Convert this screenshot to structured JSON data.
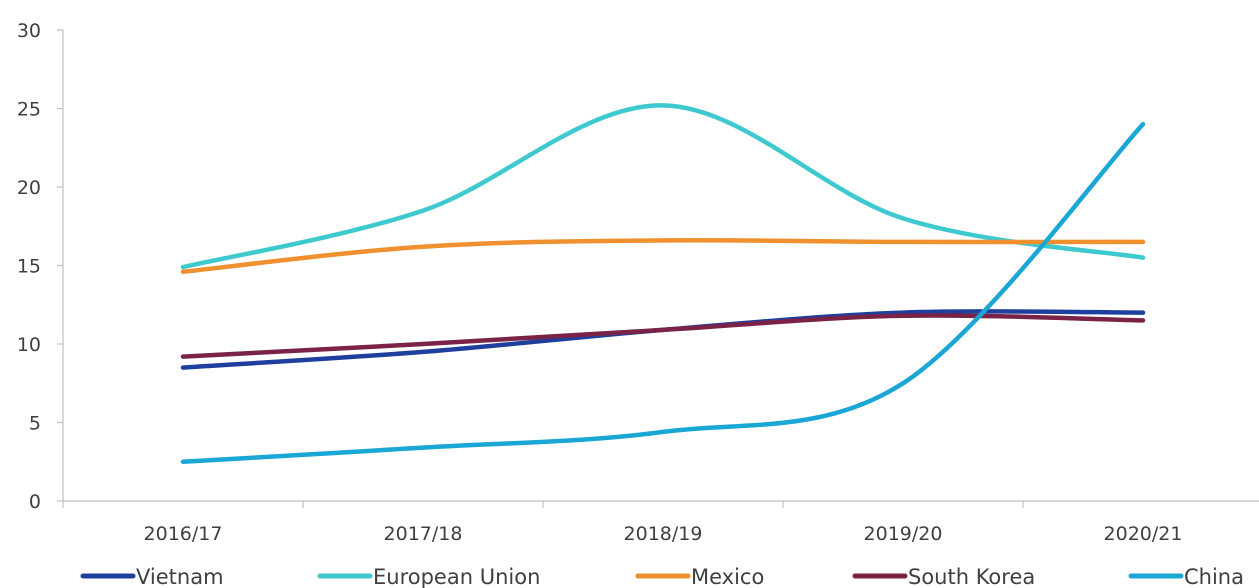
{
  "chart_data": {
    "type": "line",
    "title": "",
    "xlabel": "",
    "ylabel": "",
    "categories": [
      "2016/17",
      "2017/18",
      "2018/19",
      "2019/20",
      "2020/21"
    ],
    "ylim": [
      0,
      30
    ],
    "yticks": [
      0,
      5,
      10,
      15,
      20,
      25,
      30
    ],
    "grid": false,
    "smooth": true,
    "legend_position": "bottom",
    "series": [
      {
        "name": "Vietnam",
        "color": "#1f3f9e",
        "values": [
          8.5,
          9.5,
          10.9,
          12.0,
          12.0
        ]
      },
      {
        "name": "European Union",
        "color": "#3ec9cf",
        "values": [
          14.9,
          18.5,
          25.2,
          18.0,
          15.5
        ]
      },
      {
        "name": "Mexico",
        "color": "#f0902e",
        "values": [
          14.6,
          16.2,
          16.6,
          16.5,
          16.5
        ]
      },
      {
        "name": "South Korea",
        "color": "#7a2346",
        "values": [
          9.2,
          10.0,
          10.9,
          11.8,
          11.5
        ]
      },
      {
        "name": "China",
        "color": "#1aa7d6",
        "values": [
          2.5,
          3.4,
          4.4,
          7.5,
          24.0
        ]
      }
    ]
  }
}
